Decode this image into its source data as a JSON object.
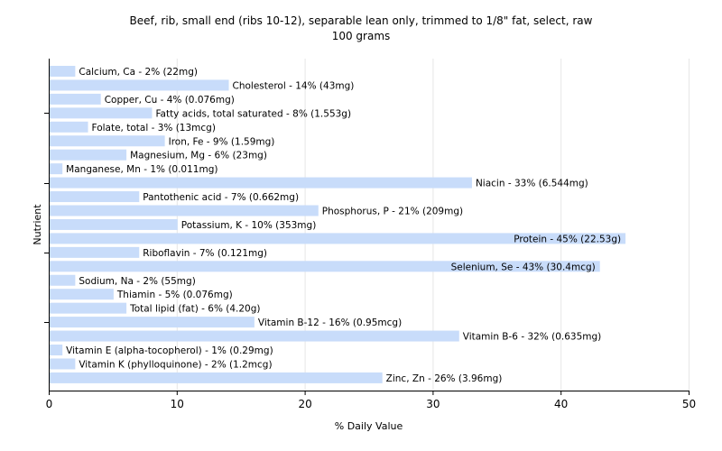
{
  "chart_data": {
    "type": "bar",
    "orientation": "horizontal",
    "title": "Beef, rib, small end (ribs 10-12), separable lean only, trimmed to 1/8\" fat, select, raw",
    "subtitle": "100 grams",
    "xlabel": "% Daily Value",
    "ylabel": "Nutrient",
    "xlim": [
      0,
      50
    ],
    "xticks": [
      0,
      10,
      20,
      30,
      40,
      50
    ],
    "grid": true,
    "bar_color": "#c8dcfa",
    "categories": [
      "Calcium, Ca",
      "Cholesterol",
      "Copper, Cu",
      "Fatty acids, total saturated",
      "Folate, total",
      "Iron, Fe",
      "Magnesium, Mg",
      "Manganese, Mn",
      "Niacin",
      "Pantothenic acid",
      "Phosphorus, P",
      "Potassium, K",
      "Protein",
      "Riboflavin",
      "Selenium, Se",
      "Sodium, Na",
      "Thiamin",
      "Total lipid (fat)",
      "Vitamin B-12",
      "Vitamin B-6",
      "Vitamin E (alpha-tocopherol)",
      "Vitamin K (phylloquinone)",
      "Zinc, Zn"
    ],
    "values": [
      2,
      14,
      4,
      8,
      3,
      9,
      6,
      1,
      33,
      7,
      21,
      10,
      45,
      7,
      43,
      2,
      5,
      6,
      16,
      32,
      1,
      2,
      26
    ],
    "labels": [
      "Calcium, Ca - 2% (22mg)",
      "Cholesterol - 14% (43mg)",
      "Copper, Cu - 4% (0.076mg)",
      "Fatty acids, total saturated - 8% (1.553g)",
      "Folate, total - 3% (13mcg)",
      "Iron, Fe - 9% (1.59mg)",
      "Magnesium, Mg - 6% (23mg)",
      "Manganese, Mn - 1% (0.011mg)",
      "Niacin - 33% (6.544mg)",
      "Pantothenic acid - 7% (0.662mg)",
      "Phosphorus, P - 21% (209mg)",
      "Potassium, K - 10% (353mg)",
      "Protein - 45% (22.53g)",
      "Riboflavin - 7% (0.121mg)",
      "Selenium, Se - 43% (30.4mcg)",
      "Sodium, Na - 2% (55mg)",
      "Thiamin - 5% (0.076mg)",
      "Total lipid (fat) - 6% (4.20g)",
      "Vitamin B-12 - 16% (0.95mcg)",
      "Vitamin B-6 - 32% (0.635mg)",
      "Vitamin E (alpha-tocopherol) - 1% (0.29mg)",
      "Vitamin K (phylloquinone) - 2% (1.2mcg)",
      "Zinc, Zn - 26% (3.96mg)"
    ]
  }
}
